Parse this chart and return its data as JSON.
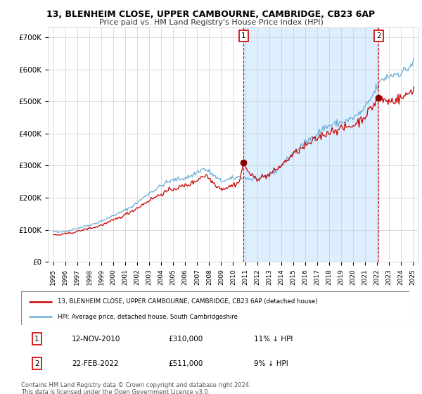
{
  "title": "13, BLENHEIM CLOSE, UPPER CAMBOURNE, CAMBRIDGE, CB23 6AP",
  "subtitle": "Price paid vs. HM Land Registry's House Price Index (HPI)",
  "ylabel_ticks": [
    0,
    100000,
    200000,
    300000,
    400000,
    500000,
    600000,
    700000
  ],
  "ylabel_labels": [
    "£0",
    "£100K",
    "£200K",
    "£300K",
    "£400K",
    "£500K",
    "£600K",
    "£700K"
  ],
  "ylim": [
    0,
    730000
  ],
  "xlim": [
    1994.6,
    2025.4
  ],
  "hpi_color": "#6baed6",
  "price_color": "#cc0000",
  "shade_color": "#ddeeff",
  "background_color": "#ffffff",
  "grid_color": "#cccccc",
  "transaction1": {
    "date": "12-NOV-2010",
    "price": 310000,
    "label": "11% ↓ HPI",
    "x": 2010.87,
    "num": "1"
  },
  "transaction2": {
    "date": "22-FEB-2022",
    "price": 511000,
    "label": "9% ↓ HPI",
    "x": 2022.13,
    "num": "2"
  },
  "legend_line1": "13, BLENHEIM CLOSE, UPPER CAMBOURNE, CAMBRIDGE, CB23 6AP (detached house)",
  "legend_line2": "HPI: Average price, detached house, South Cambridgeshire",
  "footer1": "Contains HM Land Registry data © Crown copyright and database right 2024.",
  "footer2": "This data is licensed under the Open Government Licence v3.0.",
  "xtick_years": [
    1995,
    1996,
    1997,
    1998,
    1999,
    2000,
    2001,
    2002,
    2003,
    2004,
    2005,
    2006,
    2007,
    2008,
    2009,
    2010,
    2011,
    2012,
    2013,
    2014,
    2015,
    2016,
    2017,
    2018,
    2019,
    2020,
    2021,
    2022,
    2023,
    2024,
    2025
  ]
}
